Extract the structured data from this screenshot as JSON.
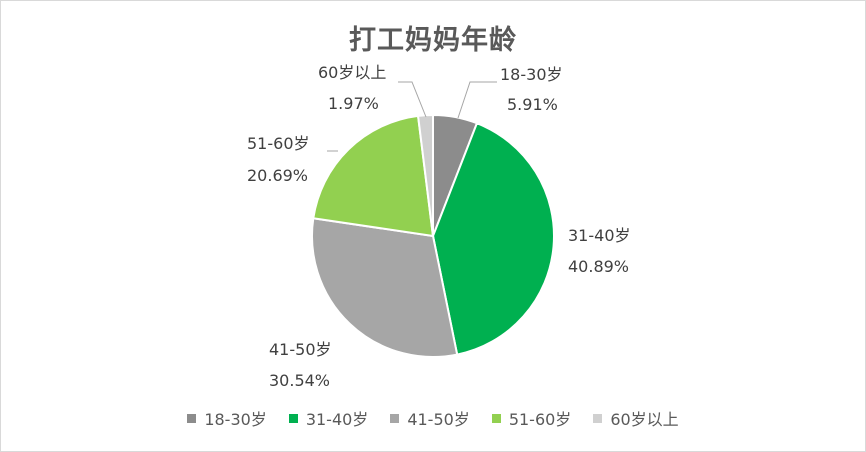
{
  "chart_data": {
    "type": "pie",
    "title": "打工妈妈年龄",
    "slices": [
      {
        "label": "18-30岁",
        "value": 5.91,
        "value_label": "5.91%",
        "color": "#8c8c8c"
      },
      {
        "label": "31-40岁",
        "value": 40.89,
        "value_label": "40.89%",
        "color": "#00b050"
      },
      {
        "label": "41-50岁",
        "value": 30.54,
        "value_label": "30.54%",
        "color": "#a6a6a6"
      },
      {
        "label": "51-60岁",
        "value": 20.69,
        "value_label": "20.69%",
        "color": "#92d050"
      },
      {
        "label": "60岁以上",
        "value": 1.97,
        "value_label": "1.97%",
        "color": "#d0d0d0"
      }
    ],
    "legend_position": "bottom",
    "start_angle": "12 o'clock, clockwise"
  }
}
